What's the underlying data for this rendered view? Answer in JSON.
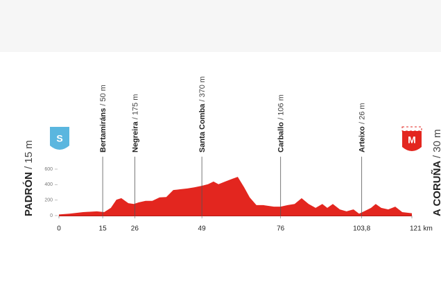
{
  "chart_data": {
    "type": "area",
    "color": "#e3261f",
    "x": [
      0,
      3.6,
      8.3,
      13,
      15.5,
      17.8,
      19.7,
      21.4,
      23.8,
      25.7,
      27.3,
      29.7,
      32,
      34.5,
      36.8,
      39.2,
      41.6,
      44,
      46.4,
      49,
      51.1,
      53,
      54.7,
      57,
      59.4,
      61.3,
      63.5,
      65.4,
      67.7,
      70.1,
      73.7,
      76,
      78.4,
      80.8,
      83.2,
      85.6,
      88,
      90.3,
      92,
      93.9,
      96.3,
      98.6,
      101,
      102.9,
      104.6,
      107,
      108.6,
      110.5,
      112.9,
      115.3,
      117.7,
      121
    ],
    "values": [
      15,
      25,
      45,
      55,
      45,
      100,
      205,
      225,
      160,
      150,
      170,
      190,
      190,
      235,
      240,
      330,
      340,
      350,
      365,
      385,
      405,
      440,
      405,
      440,
      475,
      500,
      365,
      235,
      135,
      135,
      115,
      115,
      135,
      150,
      225,
      150,
      100,
      150,
      100,
      150,
      80,
      55,
      80,
      25,
      55,
      100,
      150,
      100,
      80,
      115,
      45,
      30
    ],
    "xlim": [
      0,
      121
    ],
    "ylim": [
      0,
      600
    ],
    "yticks": [
      0,
      200,
      400,
      600
    ],
    "xticks": [
      0,
      15,
      26,
      49,
      76,
      {
        "value": 103.8,
        "label": "103,8"
      },
      {
        "value": 121,
        "label": "121 km"
      }
    ],
    "start": {
      "icon": "S",
      "name": "PADRÓN",
      "altitude": "/ 15 m"
    },
    "finish": {
      "icon": "M",
      "name": "A CORUÑA",
      "altitude": "/ 30 m"
    },
    "waypoints": [
      {
        "name": "Bertamiráns",
        "altitude": "/ 50 m"
      },
      {
        "name": "Negreira",
        "altitude": "/ 175 m"
      },
      {
        "name": "Santa Comba",
        "altitude": "/ 370 m"
      },
      {
        "name": "Carballo",
        "altitude": "/ 106 m"
      },
      {
        "name": "Arteixo",
        "altitude": "/ 26 m"
      }
    ]
  }
}
